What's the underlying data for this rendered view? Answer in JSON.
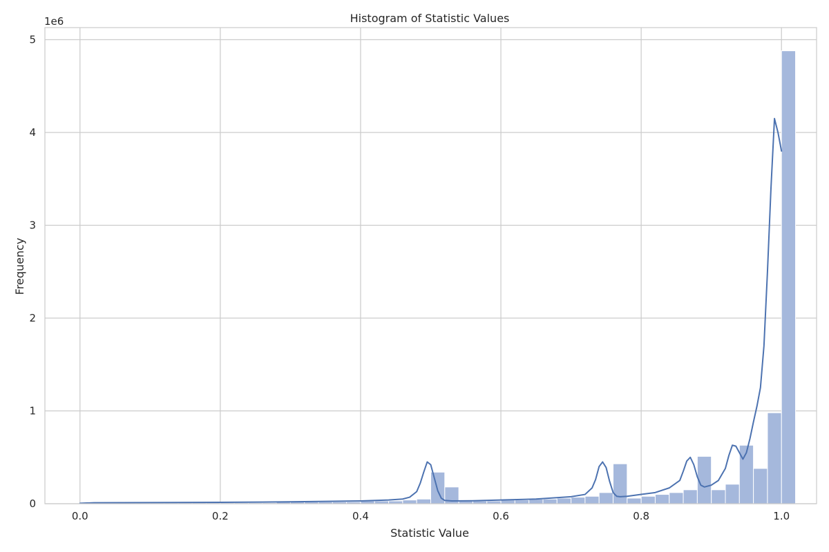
{
  "chart_data": {
    "type": "bar",
    "title": "Histogram of Statistic Values",
    "xlabel": "Statistic Value",
    "ylabel": "Frequency",
    "y_offset_label": "1e6",
    "xlim": [
      -0.05,
      1.05
    ],
    "ylim": [
      0,
      5.13
    ],
    "x_ticks": [
      0.0,
      0.2,
      0.4,
      0.6,
      0.8,
      1.0
    ],
    "x_tick_labels": [
      "0.0",
      "0.2",
      "0.4",
      "0.6",
      "0.8",
      "1.0"
    ],
    "y_ticks": [
      0,
      1,
      2,
      3,
      4,
      5
    ],
    "y_tick_labels": [
      "0",
      "1",
      "2",
      "3",
      "4",
      "5"
    ],
    "grid": true,
    "bar_color": "#a5b8dc",
    "line_color": "#4c72b0",
    "bin_edges_start": 0.0,
    "bin_width": 0.02,
    "values": [
      0.01,
      0.01,
      0.01,
      0.01,
      0.01,
      0.01,
      0.01,
      0.01,
      0.01,
      0.01,
      0.01,
      0.01,
      0.01,
      0.01,
      0.02,
      0.02,
      0.02,
      0.02,
      0.02,
      0.02,
      0.03,
      0.03,
      0.03,
      0.04,
      0.05,
      0.34,
      0.18,
      0.03,
      0.03,
      0.03,
      0.04,
      0.04,
      0.05,
      0.05,
      0.06,
      0.07,
      0.08,
      0.12,
      0.43,
      0.06,
      0.08,
      0.1,
      0.12,
      0.15,
      0.51,
      0.15,
      0.21,
      0.63,
      0.38,
      0.98,
      4.88
    ],
    "kde": {
      "x": [
        0.0,
        0.02,
        0.1,
        0.2,
        0.3,
        0.35,
        0.4,
        0.44,
        0.46,
        0.47,
        0.48,
        0.485,
        0.49,
        0.495,
        0.5,
        0.505,
        0.51,
        0.515,
        0.52,
        0.53,
        0.56,
        0.6,
        0.65,
        0.7,
        0.72,
        0.73,
        0.735,
        0.74,
        0.745,
        0.75,
        0.755,
        0.76,
        0.765,
        0.77,
        0.78,
        0.8,
        0.82,
        0.84,
        0.855,
        0.86,
        0.865,
        0.87,
        0.875,
        0.88,
        0.885,
        0.89,
        0.9,
        0.91,
        0.92,
        0.925,
        0.93,
        0.935,
        0.94,
        0.945,
        0.95,
        0.955,
        0.96,
        0.965,
        0.97,
        0.975,
        0.98,
        0.985,
        0.99,
        0.995,
        1.0
      ],
      "y": [
        0.005,
        0.01,
        0.012,
        0.015,
        0.02,
        0.025,
        0.03,
        0.04,
        0.05,
        0.07,
        0.13,
        0.22,
        0.34,
        0.45,
        0.42,
        0.28,
        0.14,
        0.06,
        0.035,
        0.03,
        0.032,
        0.04,
        0.05,
        0.075,
        0.1,
        0.17,
        0.26,
        0.4,
        0.45,
        0.39,
        0.24,
        0.12,
        0.08,
        0.075,
        0.08,
        0.1,
        0.12,
        0.17,
        0.25,
        0.35,
        0.46,
        0.5,
        0.42,
        0.29,
        0.2,
        0.18,
        0.2,
        0.25,
        0.38,
        0.52,
        0.63,
        0.62,
        0.55,
        0.48,
        0.55,
        0.7,
        0.88,
        1.05,
        1.25,
        1.7,
        2.5,
        3.4,
        4.15,
        4.0,
        3.8
      ]
    }
  }
}
